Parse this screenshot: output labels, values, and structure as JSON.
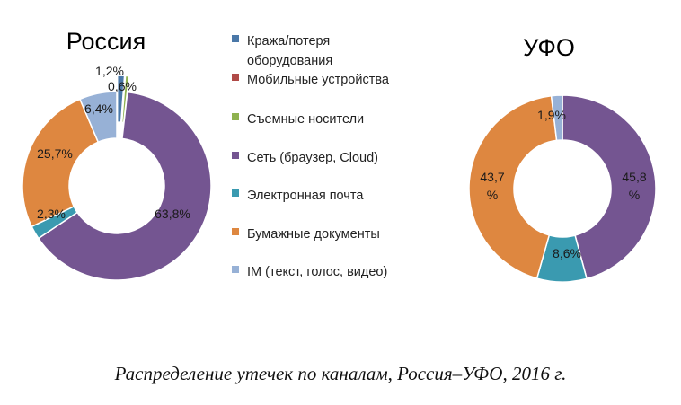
{
  "caption": "Распределение утечек по каналам, Россия–УФО, 2016 г.",
  "legend": [
    {
      "label": "Кража/потеря",
      "label2": "оборудования",
      "color": "#4a78a8"
    },
    {
      "label": "Мобильные устройства",
      "color": "#b04a47"
    },
    {
      "label": "Съемные носители",
      "color": "#8fb24f"
    },
    {
      "label": "Сеть (браузер, Cloud)",
      "color": "#745591"
    },
    {
      "label": "Электронная почта",
      "color": "#3a9ab0"
    },
    {
      "label": "Бумажные документы",
      "color": "#de8740"
    },
    {
      "label": "IM (текст, голос, видео)",
      "color": "#97b1d6"
    }
  ],
  "chart_data": [
    {
      "type": "pie",
      "title": "Россия",
      "categories": [
        "Кража/потеря оборудования",
        "Мобильные устройства",
        "Съемные носители",
        "Сеть (браузер, Cloud)",
        "Электронная почта",
        "Бумажные документы",
        "IM (текст, голос, видео)"
      ],
      "values": [
        1.2,
        0.0,
        0.6,
        63.8,
        2.3,
        25.7,
        6.4
      ],
      "labels": [
        "1,2%",
        "",
        "0,6%",
        "63,8%",
        "2,3%",
        "25,7%",
        "6,4%"
      ]
    },
    {
      "type": "pie",
      "title": "УФО",
      "categories": [
        "Кража/потеря оборудования",
        "Мобильные устройства",
        "Съемные носители",
        "Сеть (браузер, Cloud)",
        "Электронная почта",
        "Бумажные документы",
        "IM (текст, голос, видео)"
      ],
      "values": [
        0,
        0,
        0,
        45.8,
        8.6,
        43.7,
        1.9
      ],
      "labels": [
        "",
        "",
        "",
        "45,8 %",
        "8,6%",
        "43,7 %",
        "1,9%"
      ]
    }
  ]
}
